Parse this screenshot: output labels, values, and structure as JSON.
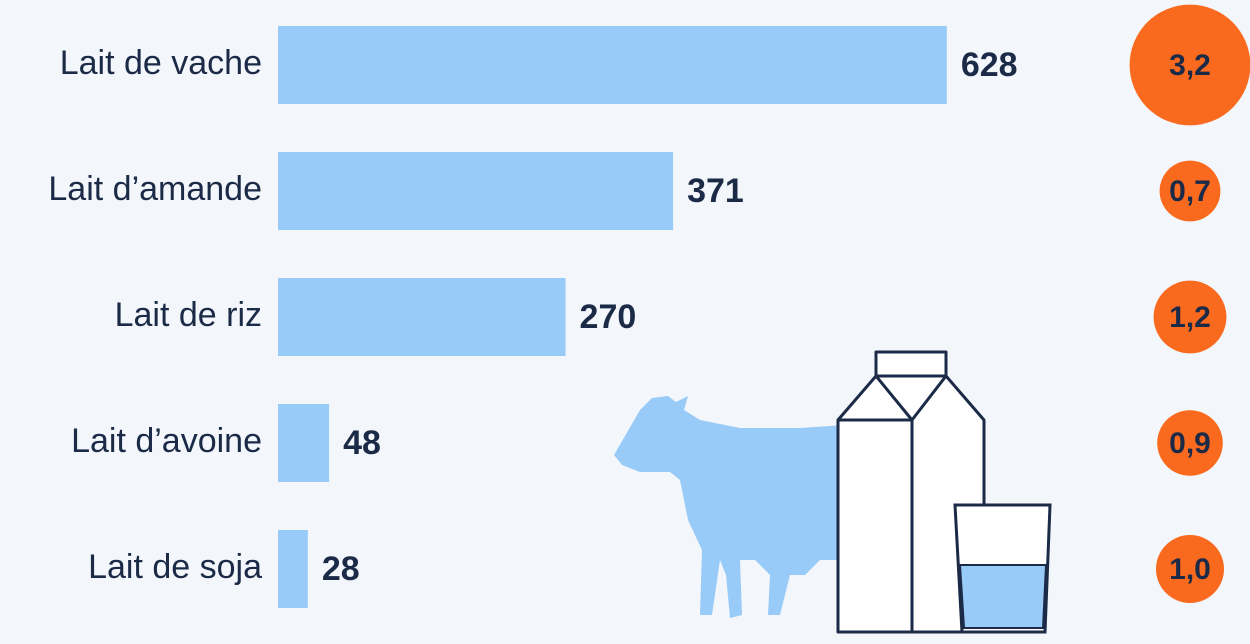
{
  "chart_data": [
    {
      "type": "bar",
      "categories": [
        "Lait de vache",
        "Lait d’amande",
        "Lait de riz",
        "Lait d’avoine",
        "Lait de soja"
      ],
      "values": [
        628,
        371,
        270,
        48,
        28
      ],
      "color": "#99cbf8"
    },
    {
      "type": "bubble",
      "values": [
        3.2,
        0.7,
        1.2,
        0.9,
        1.0
      ],
      "value_labels": [
        "3,2",
        "0,7",
        "1,2",
        "0,9",
        "1,0"
      ],
      "color": "#fa6a1e"
    }
  ]
}
